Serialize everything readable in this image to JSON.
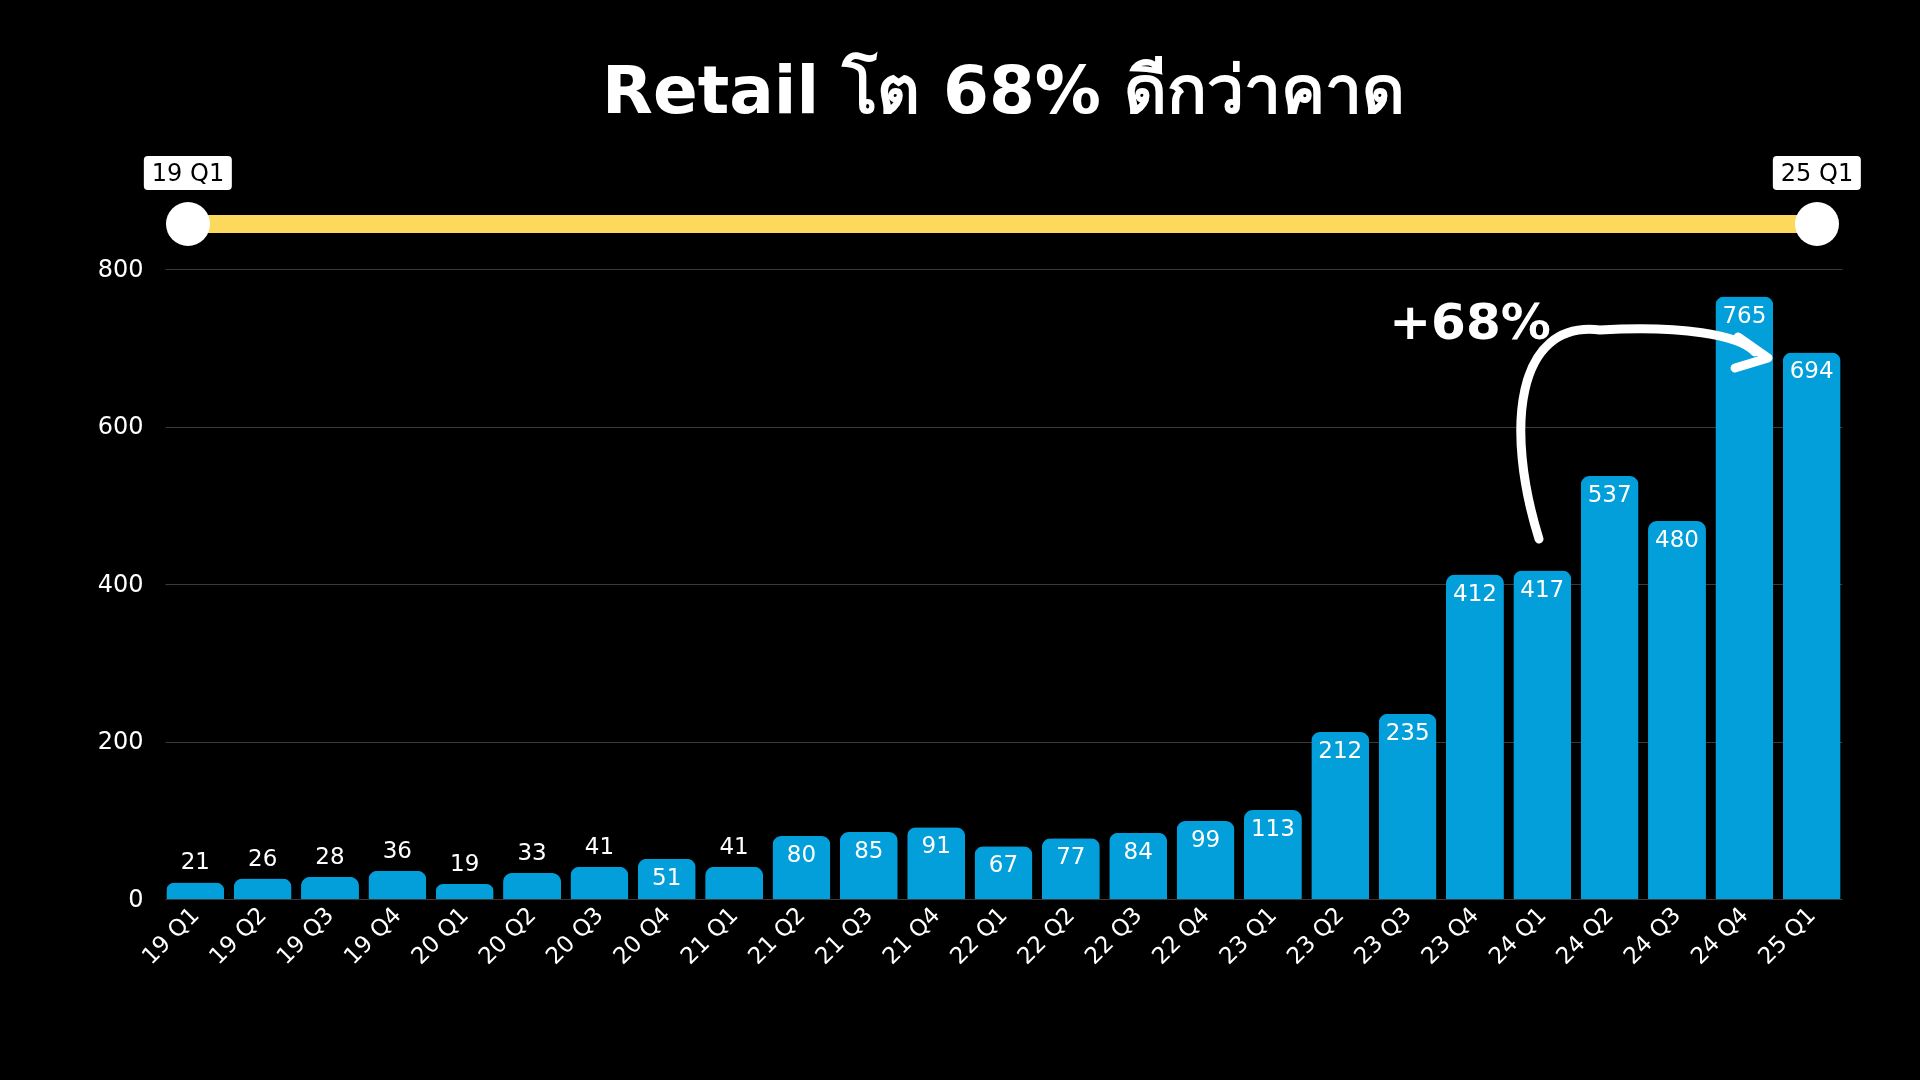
{
  "chart_data": {
    "type": "bar",
    "title": "Retail โต 68% ดีกว่าคาด",
    "categories": [
      "19 Q1",
      "19 Q2",
      "19 Q3",
      "19 Q4",
      "20 Q1",
      "20 Q2",
      "20 Q3",
      "20 Q4",
      "21 Q1",
      "21 Q2",
      "21 Q3",
      "21 Q4",
      "22 Q1",
      "22 Q2",
      "22 Q3",
      "22 Q4",
      "23 Q1",
      "23 Q2",
      "23 Q3",
      "23 Q4",
      "24 Q1",
      "24 Q2",
      "24 Q3",
      "24 Q4",
      "25 Q1"
    ],
    "values": [
      21,
      26,
      28,
      36,
      19,
      33,
      41,
      51,
      41,
      80,
      85,
      91,
      67,
      77,
      84,
      99,
      113,
      212,
      235,
      412,
      417,
      537,
      480,
      765,
      694
    ],
    "color": "#039fdb",
    "ylim": [
      0,
      800
    ],
    "yticks": [
      0,
      200,
      400,
      600,
      800
    ],
    "grid": "y",
    "data_labels": true,
    "annotations": [
      "19 Q1",
      "25 Q1",
      "+68%"
    ]
  }
}
